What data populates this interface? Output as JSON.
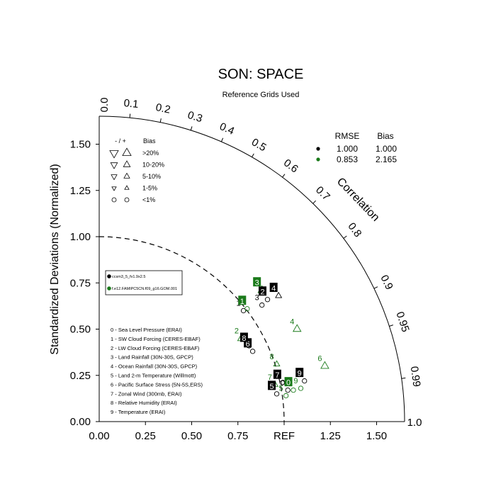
{
  "chart_data": {
    "type": "scatter",
    "title": "SON: SPACE",
    "subtitle": "Reference Grids Used",
    "ylabel": "Standardized Deviations (Normalized)",
    "xlim": [
      0,
      1.65
    ],
    "ylim": [
      0,
      1.65
    ],
    "x_ticks": [
      {
        "value": 0.25,
        "label": "0.25"
      },
      {
        "value": 0.5,
        "label": "0.50"
      },
      {
        "value": 0.75,
        "label": "0.75"
      },
      {
        "value": 1.0,
        "label": "REF"
      },
      {
        "value": 1.25,
        "label": "1.25"
      },
      {
        "value": 1.5,
        "label": "1.50"
      }
    ],
    "y_ticks": [
      {
        "value": 0.0,
        "label": "0.00"
      },
      {
        "value": 0.25,
        "label": "0.25"
      },
      {
        "value": 0.5,
        "label": "0.50"
      },
      {
        "value": 0.75,
        "label": "0.75"
      },
      {
        "value": 1.0,
        "label": "1.00"
      },
      {
        "value": 1.25,
        "label": "1.25"
      },
      {
        "value": 1.5,
        "label": "1.50"
      }
    ],
    "corner_labels": {
      "origin_x": "0.00",
      "end_x": "1.0",
      "top": "0.0"
    },
    "correlation": {
      "label": "Correlation",
      "ticks": [
        {
          "value": 0.1,
          "label": "0.1"
        },
        {
          "value": 0.2,
          "label": "0.2"
        },
        {
          "value": 0.3,
          "label": "0.3"
        },
        {
          "value": 0.4,
          "label": "0.4"
        },
        {
          "value": 0.5,
          "label": "0.5"
        },
        {
          "value": 0.6,
          "label": "0.6"
        },
        {
          "value": 0.7,
          "label": "0.7"
        },
        {
          "value": 0.8,
          "label": "0.8"
        },
        {
          "value": 0.9,
          "label": "0.9"
        },
        {
          "value": 0.95,
          "label": "0.95"
        },
        {
          "value": 0.99,
          "label": "0.99"
        }
      ]
    },
    "reference_arc": 1.0,
    "colors": {
      "case1": "#000000",
      "case2": "#1a7a1a"
    },
    "series": [
      {
        "name": "ccsm3_5_fv1.9x2.5",
        "color": "#000000",
        "points": [
          {
            "id": "0",
            "x": 1.02,
            "y": 0.17
          },
          {
            "id": "1",
            "x": 0.78,
            "y": 0.6
          },
          {
            "id": "2",
            "x": 0.91,
            "y": 0.66
          },
          {
            "id": "3",
            "x": 0.88,
            "y": 0.63
          },
          {
            "id": "4",
            "x": 0.97,
            "y": 0.68
          },
          {
            "id": "5",
            "x": 0.96,
            "y": 0.15
          },
          {
            "id": "6",
            "x": 0.83,
            "y": 0.38
          },
          {
            "id": "7",
            "x": 0.99,
            "y": 0.21
          },
          {
            "id": "8",
            "x": 0.81,
            "y": 0.41
          },
          {
            "id": "9",
            "x": 1.11,
            "y": 0.22
          }
        ]
      },
      {
        "name": "f.e12.FAMIPC5CN.f09_g16.GOM.001",
        "color": "#1a7a1a",
        "points": [
          {
            "id": "0",
            "x": 1.05,
            "y": 0.17
          },
          {
            "id": "1",
            "x": 0.8,
            "y": 0.61
          },
          {
            "id": "2",
            "x": 0.77,
            "y": 0.45
          },
          {
            "id": "3",
            "x": 0.88,
            "y": 0.71
          },
          {
            "id": "4",
            "x": 1.07,
            "y": 0.5
          },
          {
            "id": "5",
            "x": 1.01,
            "y": 0.14
          },
          {
            "id": "6",
            "x": 1.22,
            "y": 0.3
          },
          {
            "id": "7",
            "x": 0.95,
            "y": 0.2
          },
          {
            "id": "8",
            "x": 0.96,
            "y": 0.31
          },
          {
            "id": "9",
            "x": 1.09,
            "y": 0.18
          }
        ]
      }
    ],
    "markers": [
      {
        "s": "0",
        "i": 0,
        "sym": "circle"
      },
      {
        "s": "0",
        "i": 1,
        "sym": "circle"
      },
      {
        "s": "0",
        "i": 2,
        "sym": "circle"
      },
      {
        "s": "0",
        "i": 3,
        "sym": "circle"
      },
      {
        "s": "0",
        "i": 4,
        "sym": "tri-up-small"
      },
      {
        "s": "0",
        "i": 5,
        "sym": "circle"
      },
      {
        "s": "0",
        "i": 6,
        "sym": "circle"
      },
      {
        "s": "0",
        "i": 7,
        "sym": "circle"
      },
      {
        "s": "0",
        "i": 8,
        "sym": "circle"
      },
      {
        "s": "0",
        "i": 9,
        "sym": "circle"
      },
      {
        "s": "1",
        "i": 0,
        "sym": "circle"
      },
      {
        "s": "1",
        "i": 1,
        "sym": "circle"
      },
      {
        "s": "1",
        "i": 2,
        "sym": "tri-up-large"
      },
      {
        "s": "1",
        "i": 3,
        "sym": "tri-up-large"
      },
      {
        "s": "1",
        "i": 4,
        "sym": "tri-up-large"
      },
      {
        "s": "1",
        "i": 5,
        "sym": "circle"
      },
      {
        "s": "1",
        "i": 6,
        "sym": "tri-up-large"
      },
      {
        "s": "1",
        "i": 7,
        "sym": "tri-up-small"
      },
      {
        "s": "1",
        "i": 8,
        "sym": "tri-up-small"
      },
      {
        "s": "1",
        "i": 9,
        "sym": "circle"
      }
    ],
    "stats_table": {
      "headers": [
        "RMSE",
        "Bias"
      ],
      "rows": [
        {
          "color": "#000000",
          "rmse": "1.000",
          "bias": "1.000"
        },
        {
          "color": "#1a7a1a",
          "rmse": "0.853",
          "bias": "2.165"
        }
      ]
    },
    "bias_legend": {
      "header_sign": "- / +",
      "header_bias": "Bias",
      "rows": [
        {
          "label": ">20%",
          "sym": "large"
        },
        {
          "label": "10-20%",
          "sym": "medium"
        },
        {
          "label": "5-10%",
          "sym": "small"
        },
        {
          "label": "1-5%",
          "sym": "tiny"
        },
        {
          "label": "<1%",
          "sym": "circle"
        }
      ]
    },
    "cases_legend": [
      {
        "label": "ccsm3_5_fv1.9x2.5",
        "color": "#000000"
      },
      {
        "label": "f.e12.FAMIPC5CN.f09_g16.GOM.001",
        "color": "#1a7a1a"
      }
    ],
    "variables": [
      "0 - Sea Level Pressure (ERAI)",
      "1 - SW Cloud Forcing (CERES-EBAF)",
      "2 - LW Cloud Forcing (CERES-EBAF)",
      "3 - Land Rainfall (30N-30S, GPCP)",
      "4 - Ocean Rainfall (30N-30S, GPCP)",
      "5 - Land 2-m Temperature (Willmott)",
      "6 - Pacific Surface Stress (5N-5S,ERS)",
      "7 - Zonal Wind (300mb, ERAI)",
      "8 - Relative Humidity (ERAI)",
      "9 - Temperature (ERAI)"
    ]
  }
}
